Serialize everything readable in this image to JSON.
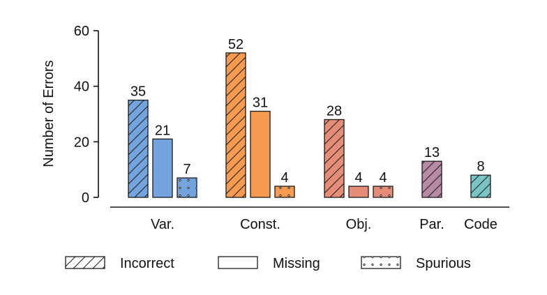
{
  "chart_data": {
    "type": "bar",
    "title": "",
    "xlabel": "",
    "ylabel": "Number of Errors",
    "ylim": [
      0,
      60
    ],
    "yticks": [
      0,
      20,
      40,
      60
    ],
    "grid": false,
    "legend_position": "bottom",
    "categories": [
      "Var.",
      "Const.",
      "Obj.",
      "Par.",
      "Code"
    ],
    "category_colors": [
      "#74a4dd",
      "#f59a4f",
      "#e58d76",
      "#b78aa6",
      "#79c5c5"
    ],
    "series": [
      {
        "name": "Incorrect",
        "pattern": "hatch",
        "values": [
          35,
          52,
          28,
          13,
          8
        ]
      },
      {
        "name": "Missing",
        "pattern": "none",
        "values": [
          21,
          31,
          4,
          null,
          null
        ]
      },
      {
        "name": "Spurious",
        "pattern": "dots",
        "values": [
          7,
          4,
          4,
          null,
          null
        ]
      }
    ]
  }
}
